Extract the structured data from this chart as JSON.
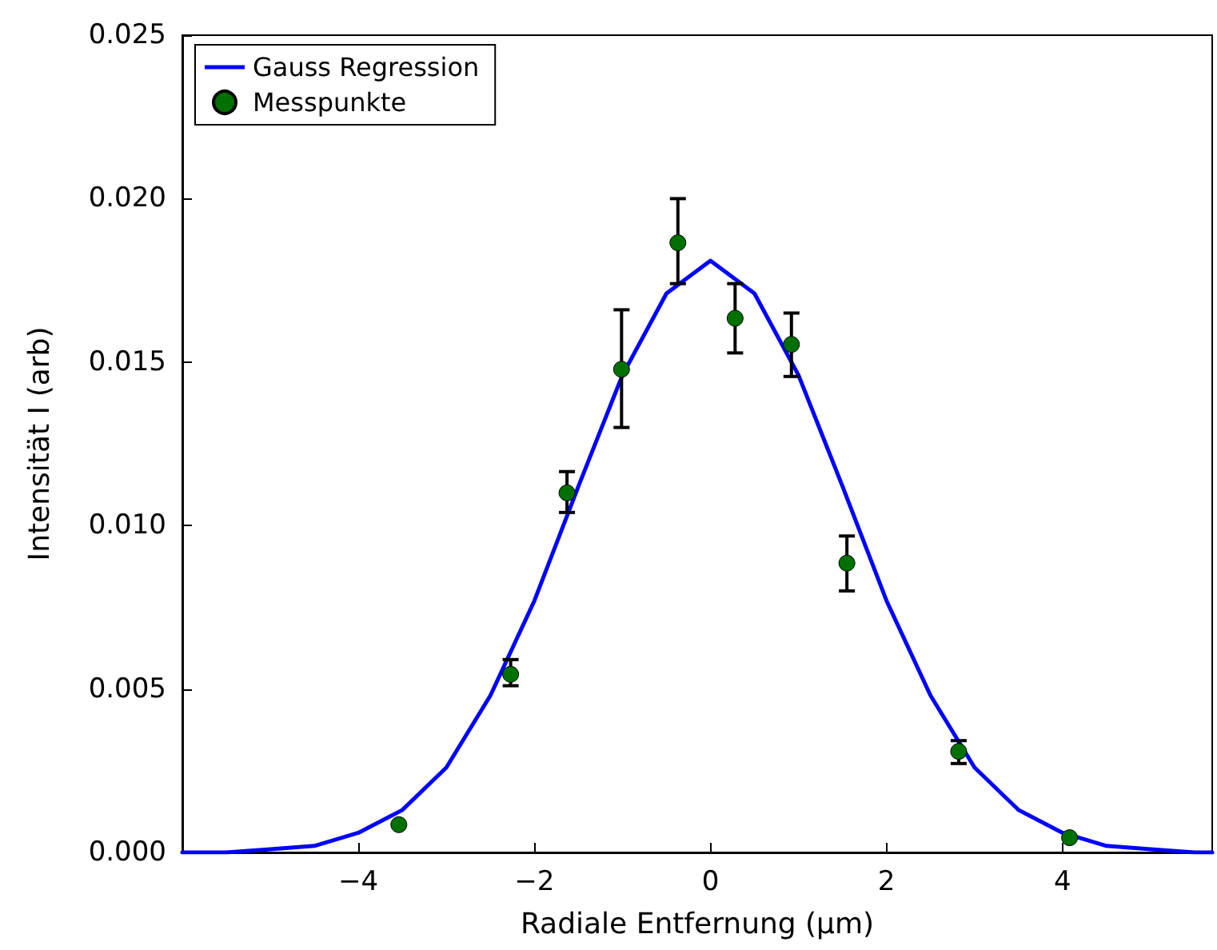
{
  "chart_data": {
    "type": "scatter",
    "xlabel": "Radiale Entfernung (μm)",
    "ylabel": "Intensität I (arb)",
    "xlim": [
      -6,
      5.7
    ],
    "ylim": [
      0,
      0.025
    ],
    "xticks": [
      {
        "value": -4,
        "label": "−4"
      },
      {
        "value": -2,
        "label": "−2"
      },
      {
        "value": 0,
        "label": "0"
      },
      {
        "value": 2,
        "label": "2"
      },
      {
        "value": 4,
        "label": "4"
      }
    ],
    "yticks": [
      {
        "value": 0,
        "label": "0.000"
      },
      {
        "value": 0.005,
        "label": "0.005"
      },
      {
        "value": 0.01,
        "label": "0.010"
      },
      {
        "value": 0.015,
        "label": "0.015"
      },
      {
        "value": 0.02,
        "label": "0.020"
      },
      {
        "value": 0.025,
        "label": "0.025"
      }
    ],
    "grid": false,
    "legend": "top left",
    "series": [
      {
        "name": "Gauss Regression",
        "type": "line",
        "color": "#0000ff",
        "line_style": "solid",
        "marker": "none",
        "x": [
          -6,
          -5.5,
          -5,
          -4.5,
          -4,
          -3.5,
          -3,
          -2.5,
          -2,
          -1.5,
          -1,
          -0.5,
          0,
          0.5,
          1,
          1.5,
          2,
          2.5,
          3,
          3.5,
          4,
          4.5,
          5,
          5.5,
          5.7
        ],
        "values": [
          0,
          0,
          0.0001,
          0.0002,
          0.0006,
          0.0013,
          0.0026,
          0.0048,
          0.0077,
          0.0112,
          0.0146,
          0.0171,
          0.0181,
          0.0171,
          0.0146,
          0.0112,
          0.0077,
          0.0048,
          0.0026,
          0.0013,
          0.0006,
          0.0002,
          0.0001,
          0,
          0
        ]
      },
      {
        "name": "Messpunkte",
        "type": "scatter",
        "color": "#007000",
        "marker": "circle",
        "x": [
          -3.54,
          -2.27,
          -1.63,
          -1.01,
          -0.37,
          0.28,
          0.92,
          1.55,
          2.82,
          4.08
        ],
        "values": [
          0.00085,
          0.00545,
          0.011,
          0.01478,
          0.01865,
          0.01634,
          0.01554,
          0.00885,
          0.00309,
          0.00045
        ],
        "errors": [
          null,
          [
            0.0051,
            0.0059
          ],
          [
            0.0104,
            0.01165
          ],
          [
            0.013,
            0.0166
          ],
          [
            0.0174,
            0.02
          ],
          [
            0.01528,
            0.0174
          ],
          [
            0.01456,
            0.0165
          ],
          [
            0.008,
            0.00968
          ],
          [
            0.00272,
            0.00342
          ],
          null
        ]
      }
    ]
  }
}
